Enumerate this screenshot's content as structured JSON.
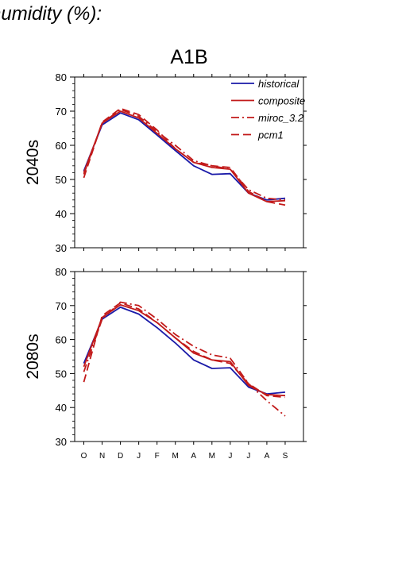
{
  "figure_title": "humidity (%):",
  "chart_data": [
    {
      "type": "line",
      "title": "A1B",
      "ylabel": "2040s",
      "ylim": [
        30,
        80
      ],
      "yticks": [
        30,
        40,
        50,
        60,
        70,
        80
      ],
      "categories": [
        "O",
        "N",
        "D",
        "J",
        "F",
        "M",
        "A",
        "M",
        "J",
        "J",
        "A",
        "S"
      ],
      "legend": {
        "position": "top-right"
      },
      "series": [
        {
          "name": "historical",
          "color": "#1a1aa8",
          "style": "solid",
          "values": [
            52.5,
            66,
            69.5,
            67.5,
            63,
            58.5,
            54,
            51.5,
            51.7,
            46,
            44,
            44.5
          ]
        },
        {
          "name": "composite",
          "color": "#c21a1a",
          "style": "solid",
          "values": [
            52,
            66.5,
            70,
            68,
            63.5,
            59,
            55,
            53.5,
            53,
            46,
            43.5,
            43.8
          ]
        },
        {
          "name": "miroc_3.2",
          "color": "#c21a1a",
          "style": "dashdot",
          "values": [
            51.5,
            66.5,
            70.5,
            68.5,
            64,
            60,
            55.5,
            54,
            53,
            47,
            44.5,
            44
          ]
        },
        {
          "name": "pcm1",
          "color": "#c21a1a",
          "style": "dash",
          "values": [
            50.5,
            66.8,
            70.8,
            69,
            64.5,
            59,
            55,
            54,
            53.5,
            46.5,
            43.5,
            42.5
          ]
        }
      ]
    },
    {
      "type": "line",
      "ylabel": "2080s",
      "ylim": [
        30,
        80
      ],
      "yticks": [
        30,
        40,
        50,
        60,
        70,
        80
      ],
      "categories": [
        "O",
        "N",
        "D",
        "J",
        "F",
        "M",
        "A",
        "M",
        "J",
        "J",
        "A",
        "S"
      ],
      "series": [
        {
          "name": "historical",
          "color": "#1a1aa8",
          "style": "solid",
          "values": [
            53,
            66,
            69.5,
            67.5,
            63.5,
            59,
            54,
            51.5,
            51.7,
            46,
            44,
            44.5
          ]
        },
        {
          "name": "composite",
          "color": "#c21a1a",
          "style": "solid",
          "values": [
            52,
            66.5,
            70.2,
            68.5,
            65,
            60.5,
            56,
            54,
            53.5,
            46.5,
            43.8,
            43.5
          ]
        },
        {
          "name": "miroc_3.2",
          "color": "#c21a1a",
          "style": "dashdot",
          "values": [
            50.5,
            66,
            71,
            70,
            66,
            61.5,
            58,
            55.5,
            54.5,
            47,
            42,
            37.5
          ]
        },
        {
          "name": "pcm1",
          "color": "#c21a1a",
          "style": "dash",
          "values": [
            47.5,
            67,
            70.8,
            69,
            65,
            60.5,
            56.5,
            54,
            53,
            47,
            43.5,
            43
          ]
        }
      ]
    }
  ]
}
